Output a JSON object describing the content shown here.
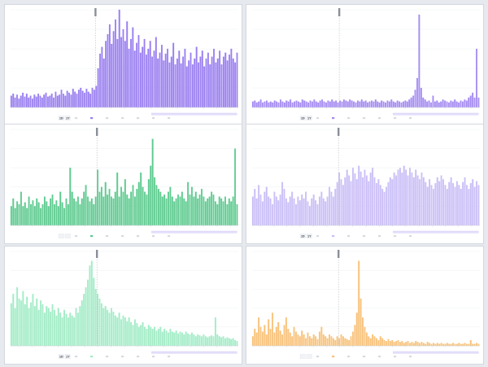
{
  "chart_data": [
    {
      "type": "bar",
      "color": "#9a7ff0",
      "marker_index": 44,
      "legend_buttons": [
        "1D",
        "1Y"
      ],
      "legend_items": [
        "",
        "",
        "",
        "",
        "",
        "",
        ""
      ],
      "x_tick_labels": [
        "",
        "",
        "",
        "",
        "",
        "",
        "",
        "",
        "",
        "",
        "",
        "",
        "",
        "",
        "",
        "",
        ""
      ],
      "y_tick_labels": [
        "",
        "",
        "",
        "",
        "",
        ""
      ],
      "ylim": [
        0,
        1
      ],
      "values": [
        0.12,
        0.14,
        0.1,
        0.13,
        0.09,
        0.12,
        0.15,
        0.11,
        0.14,
        0.1,
        0.12,
        0.09,
        0.13,
        0.11,
        0.14,
        0.12,
        0.1,
        0.13,
        0.15,
        0.11,
        0.12,
        0.14,
        0.1,
        0.16,
        0.12,
        0.13,
        0.18,
        0.14,
        0.12,
        0.17,
        0.15,
        0.13,
        0.19,
        0.16,
        0.14,
        0.18,
        0.2,
        0.17,
        0.15,
        0.19,
        0.16,
        0.14,
        0.2,
        0.18,
        0.22,
        0.4,
        0.55,
        0.62,
        0.5,
        0.68,
        0.75,
        0.85,
        0.65,
        0.78,
        0.9,
        0.7,
        1.0,
        0.72,
        0.8,
        0.68,
        0.88,
        0.6,
        0.7,
        0.82,
        0.58,
        0.66,
        0.74,
        0.56,
        0.62,
        0.7,
        0.54,
        0.6,
        0.68,
        0.52,
        0.58,
        0.72,
        0.5,
        0.56,
        0.64,
        0.48,
        0.55,
        0.6,
        0.46,
        0.52,
        0.66,
        0.44,
        0.5,
        0.58,
        0.45,
        0.52,
        0.6,
        0.42,
        0.48,
        0.56,
        0.44,
        0.5,
        0.62,
        0.46,
        0.52,
        0.58,
        0.42,
        0.5,
        0.56,
        0.44,
        0.52,
        0.6,
        0.46,
        0.5,
        0.58,
        0.44,
        0.52,
        0.56,
        0.48,
        0.54,
        0.6,
        0.5,
        0.46,
        0.56
      ]
    },
    {
      "type": "bar",
      "color": "#a58cf2",
      "marker_index": 44,
      "legend_buttons": [
        "1D",
        "1Y"
      ],
      "legend_items": [
        "",
        "",
        "",
        "",
        "",
        "",
        ""
      ],
      "x_tick_labels": [
        "",
        "",
        "",
        "",
        "",
        "",
        "",
        "",
        "",
        "",
        "",
        "",
        "",
        "",
        "",
        "",
        ""
      ],
      "y_tick_labels": [
        "",
        "",
        "",
        "",
        "",
        ""
      ],
      "ylim": [
        0,
        1
      ],
      "values": [
        0.06,
        0.07,
        0.05,
        0.06,
        0.08,
        0.05,
        0.06,
        0.07,
        0.05,
        0.06,
        0.05,
        0.07,
        0.06,
        0.05,
        0.08,
        0.06,
        0.05,
        0.07,
        0.06,
        0.08,
        0.05,
        0.06,
        0.07,
        0.06,
        0.05,
        0.08,
        0.07,
        0.06,
        0.05,
        0.07,
        0.06,
        0.08,
        0.06,
        0.05,
        0.07,
        0.08,
        0.06,
        0.05,
        0.07,
        0.06,
        0.08,
        0.06,
        0.07,
        0.05,
        0.07,
        0.06,
        0.08,
        0.07,
        0.06,
        0.08,
        0.07,
        0.06,
        0.05,
        0.07,
        0.06,
        0.08,
        0.06,
        0.07,
        0.05,
        0.06,
        0.07,
        0.06,
        0.08,
        0.06,
        0.05,
        0.07,
        0.06,
        0.05,
        0.07,
        0.06,
        0.08,
        0.06,
        0.05,
        0.07,
        0.06,
        0.05,
        0.06,
        0.07,
        0.06,
        0.08,
        0.1,
        0.12,
        0.18,
        0.3,
        0.95,
        0.2,
        0.1,
        0.08,
        0.06,
        0.07,
        0.05,
        0.12,
        0.06,
        0.07,
        0.05,
        0.06,
        0.08,
        0.07,
        0.06,
        0.05,
        0.07,
        0.06,
        0.08,
        0.06,
        0.05,
        0.07,
        0.06,
        0.08,
        0.07,
        0.1,
        0.12,
        0.15,
        0.1,
        0.6,
        0.1
      ]
    },
    {
      "type": "bar",
      "color": "#5fcb90",
      "marker_index": 44,
      "legend_buttons": [
        "",
        ""
      ],
      "legend_items": [
        "",
        "",
        "",
        "",
        "",
        "",
        ""
      ],
      "x_tick_labels": [
        "",
        "",
        "",
        "",
        "",
        "",
        "",
        "",
        "",
        "",
        "",
        "",
        "",
        "",
        "",
        "",
        ""
      ],
      "y_tick_labels": [
        "",
        "",
        "",
        "",
        "",
        ""
      ],
      "ylim": [
        0,
        1
      ],
      "values": [
        0.2,
        0.28,
        0.18,
        0.25,
        0.22,
        0.35,
        0.2,
        0.24,
        0.18,
        0.3,
        0.22,
        0.26,
        0.2,
        0.28,
        0.24,
        0.18,
        0.22,
        0.3,
        0.25,
        0.2,
        0.28,
        0.32,
        0.22,
        0.26,
        0.2,
        0.35,
        0.24,
        0.18,
        0.28,
        0.22,
        0.6,
        0.35,
        0.28,
        0.25,
        0.3,
        0.22,
        0.28,
        0.35,
        0.42,
        0.3,
        0.25,
        0.28,
        0.22,
        0.3,
        0.58,
        0.35,
        0.4,
        0.3,
        0.45,
        0.32,
        0.38,
        0.3,
        0.28,
        0.35,
        0.55,
        0.3,
        0.4,
        0.35,
        0.48,
        0.32,
        0.28,
        0.35,
        0.42,
        0.3,
        0.38,
        0.45,
        0.55,
        0.4,
        0.35,
        0.32,
        0.48,
        0.62,
        0.9,
        0.5,
        0.42,
        0.38,
        0.35,
        0.3,
        0.32,
        0.28,
        0.35,
        0.4,
        0.3,
        0.25,
        0.28,
        0.32,
        0.3,
        0.35,
        0.28,
        0.25,
        0.45,
        0.32,
        0.4,
        0.3,
        0.35,
        0.28,
        0.32,
        0.38,
        0.3,
        0.25,
        0.28,
        0.3,
        0.35,
        0.32,
        0.25,
        0.22,
        0.3,
        0.28,
        0.25,
        0.3,
        0.22,
        0.28,
        0.25,
        0.3,
        0.8,
        0.22
      ]
    },
    {
      "type": "bar",
      "color": "#cbbff7",
      "marker_index": 44,
      "legend_buttons": [
        "1D",
        "1Y"
      ],
      "legend_items": [
        "",
        "",
        "",
        "",
        "",
        "",
        ""
      ],
      "x_tick_labels": [
        "",
        "",
        "",
        "",
        "",
        "",
        "",
        "",
        "",
        "",
        "",
        "",
        "",
        "",
        "",
        "",
        ""
      ],
      "y_tick_labels": [
        "",
        "",
        "",
        "",
        "",
        ""
      ],
      "ylim": [
        0,
        1
      ],
      "values": [
        0.3,
        0.38,
        0.28,
        0.42,
        0.32,
        0.25,
        0.35,
        0.4,
        0.3,
        0.28,
        0.22,
        0.35,
        0.3,
        0.26,
        0.32,
        0.45,
        0.38,
        0.28,
        0.24,
        0.3,
        0.35,
        0.28,
        0.22,
        0.3,
        0.26,
        0.32,
        0.28,
        0.35,
        0.25,
        0.2,
        0.28,
        0.32,
        0.26,
        0.22,
        0.3,
        0.35,
        0.28,
        0.25,
        0.3,
        0.4,
        0.35,
        0.3,
        0.38,
        0.45,
        0.55,
        0.48,
        0.42,
        0.5,
        0.58,
        0.52,
        0.46,
        0.6,
        0.54,
        0.48,
        0.62,
        0.56,
        0.5,
        0.58,
        0.52,
        0.46,
        0.55,
        0.6,
        0.5,
        0.44,
        0.48,
        0.42,
        0.38,
        0.35,
        0.4,
        0.45,
        0.5,
        0.48,
        0.55,
        0.52,
        0.58,
        0.6,
        0.55,
        0.62,
        0.58,
        0.52,
        0.6,
        0.55,
        0.5,
        0.58,
        0.52,
        0.48,
        0.55,
        0.5,
        0.45,
        0.4,
        0.48,
        0.42,
        0.38,
        0.44,
        0.5,
        0.46,
        0.52,
        0.48,
        0.42,
        0.38,
        0.45,
        0.5,
        0.44,
        0.4,
        0.46,
        0.42,
        0.38,
        0.45,
        0.5,
        0.42,
        0.38,
        0.44,
        0.48,
        0.4,
        0.46,
        0.42
      ]
    },
    {
      "type": "bar",
      "color": "#a3ecc7",
      "marker_index": 44,
      "legend_buttons": [
        "1D",
        "1Y"
      ],
      "legend_items": [
        "",
        "",
        "",
        "",
        "",
        "",
        ""
      ],
      "x_tick_labels": [
        "",
        "",
        "",
        "",
        "",
        "",
        "",
        "",
        "",
        "",
        "",
        "",
        "",
        "",
        "",
        "",
        ""
      ],
      "y_tick_labels": [
        "",
        "",
        "",
        "",
        "",
        ""
      ],
      "ylim": [
        0,
        1
      ],
      "values": [
        0.45,
        0.55,
        0.4,
        0.62,
        0.5,
        0.48,
        0.58,
        0.44,
        0.52,
        0.4,
        0.46,
        0.55,
        0.42,
        0.5,
        0.38,
        0.48,
        0.44,
        0.35,
        0.42,
        0.4,
        0.36,
        0.44,
        0.38,
        0.32,
        0.4,
        0.35,
        0.3,
        0.38,
        0.34,
        0.3,
        0.35,
        0.32,
        0.3,
        0.4,
        0.35,
        0.42,
        0.48,
        0.55,
        0.62,
        0.7,
        0.85,
        0.9,
        0.72,
        0.6,
        0.55,
        0.5,
        0.45,
        0.4,
        0.42,
        0.38,
        0.35,
        0.4,
        0.36,
        0.32,
        0.3,
        0.35,
        0.28,
        0.32,
        0.3,
        0.26,
        0.3,
        0.25,
        0.22,
        0.28,
        0.24,
        0.2,
        0.22,
        0.25,
        0.2,
        0.18,
        0.22,
        0.2,
        0.18,
        0.2,
        0.16,
        0.18,
        0.2,
        0.15,
        0.18,
        0.16,
        0.14,
        0.18,
        0.15,
        0.14,
        0.16,
        0.13,
        0.15,
        0.14,
        0.12,
        0.15,
        0.13,
        0.12,
        0.14,
        0.12,
        0.1,
        0.12,
        0.11,
        0.1,
        0.12,
        0.1,
        0.09,
        0.1,
        0.11,
        0.1,
        0.3,
        0.12,
        0.1,
        0.09,
        0.1,
        0.08,
        0.09,
        0.08,
        0.07,
        0.08,
        0.06,
        0.05
      ]
    },
    {
      "type": "bar",
      "color": "#f8c27a",
      "marker_index": 44,
      "legend_buttons": [
        "",
        ""
      ],
      "legend_items": [
        "",
        "",
        "",
        "",
        "",
        "",
        ""
      ],
      "x_tick_labels": [
        "",
        "",
        "",
        "",
        "",
        "",
        "",
        "",
        "",
        "",
        "",
        "",
        "",
        "",
        "",
        "",
        ""
      ],
      "y_tick_labels": [
        "",
        "",
        "",
        "",
        "",
        ""
      ],
      "ylim": [
        0,
        1
      ],
      "values": [
        0.1,
        0.18,
        0.14,
        0.3,
        0.2,
        0.15,
        0.22,
        0.12,
        0.28,
        0.18,
        0.35,
        0.14,
        0.2,
        0.25,
        0.16,
        0.12,
        0.22,
        0.3,
        0.18,
        0.14,
        0.1,
        0.2,
        0.15,
        0.12,
        0.1,
        0.16,
        0.12,
        0.08,
        0.14,
        0.1,
        0.08,
        0.12,
        0.1,
        0.07,
        0.15,
        0.2,
        0.12,
        0.1,
        0.08,
        0.12,
        0.1,
        0.08,
        0.06,
        0.1,
        0.08,
        0.12,
        0.1,
        0.08,
        0.07,
        0.06,
        0.1,
        0.15,
        0.22,
        0.35,
        0.9,
        0.5,
        0.3,
        0.2,
        0.14,
        0.1,
        0.08,
        0.12,
        0.1,
        0.08,
        0.06,
        0.1,
        0.08,
        0.06,
        0.05,
        0.07,
        0.05,
        0.06,
        0.04,
        0.05,
        0.06,
        0.04,
        0.05,
        0.03,
        0.04,
        0.05,
        0.03,
        0.04,
        0.03,
        0.05,
        0.04,
        0.03,
        0.04,
        0.03,
        0.02,
        0.04,
        0.03,
        0.02,
        0.03,
        0.02,
        0.03,
        0.02,
        0.03,
        0.02,
        0.02,
        0.03,
        0.02,
        0.02,
        0.03,
        0.02,
        0.02,
        0.03,
        0.02,
        0.02,
        0.03,
        0.02,
        0.02,
        0.06,
        0.02,
        0.02,
        0.03,
        0.02
      ]
    }
  ]
}
